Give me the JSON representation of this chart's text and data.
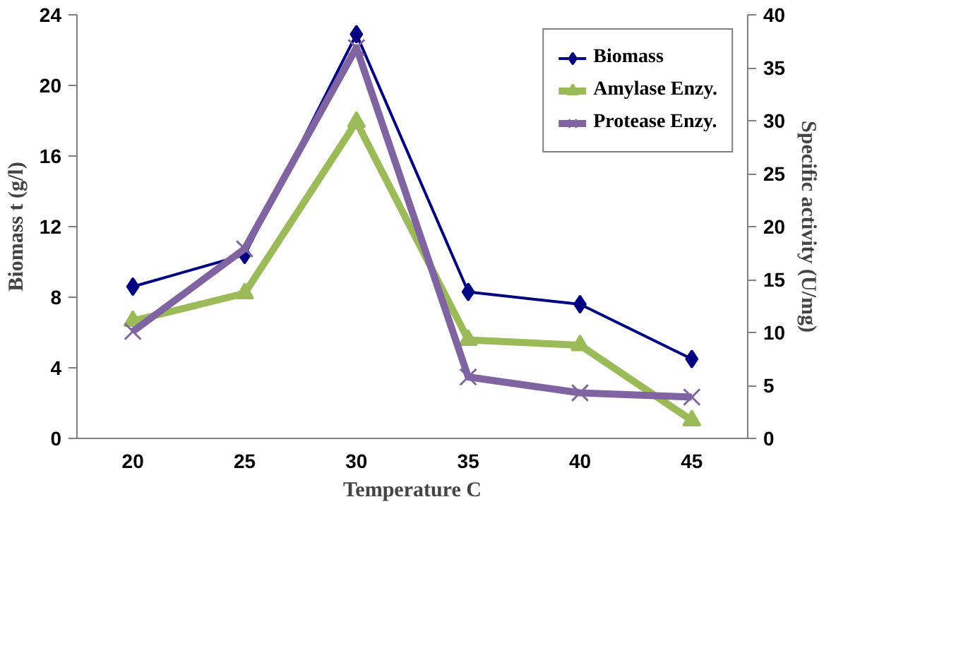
{
  "chart_data": {
    "type": "line",
    "xlabel": "Temperature C",
    "ylabel": "Biomass t (g/l)",
    "y2label": "Specific activity (U/mg)",
    "categories": [
      "20",
      "25",
      "30",
      "35",
      "40",
      "45"
    ],
    "series": [
      {
        "name": "Biomass",
        "color": "#000080",
        "marker": "diamond",
        "values": [
          8.6,
          10.4,
          22.9,
          8.3,
          7.6,
          4.5
        ]
      },
      {
        "name": "Amylase Enzy.",
        "color": "#9bbb59",
        "marker": "triangle",
        "axis": "y2",
        "values": [
          11.1,
          13.7,
          29.9,
          9.3,
          8.8,
          1.7
        ]
      },
      {
        "name": "Protease Enzy.",
        "color": "#8064a2",
        "marker": "cross",
        "axis": "y2",
        "values": [
          10.1,
          17.9,
          36.9,
          5.8,
          4.3,
          3.9
        ]
      }
    ],
    "ylim": [
      0,
      24
    ],
    "yticks": [
      0,
      4,
      8,
      12,
      16,
      20,
      24
    ],
    "y2lim": [
      0,
      40
    ],
    "y2ticks": [
      0,
      5,
      10,
      15,
      20,
      25,
      30,
      35,
      40
    ],
    "grid": false,
    "legend": "top right"
  }
}
